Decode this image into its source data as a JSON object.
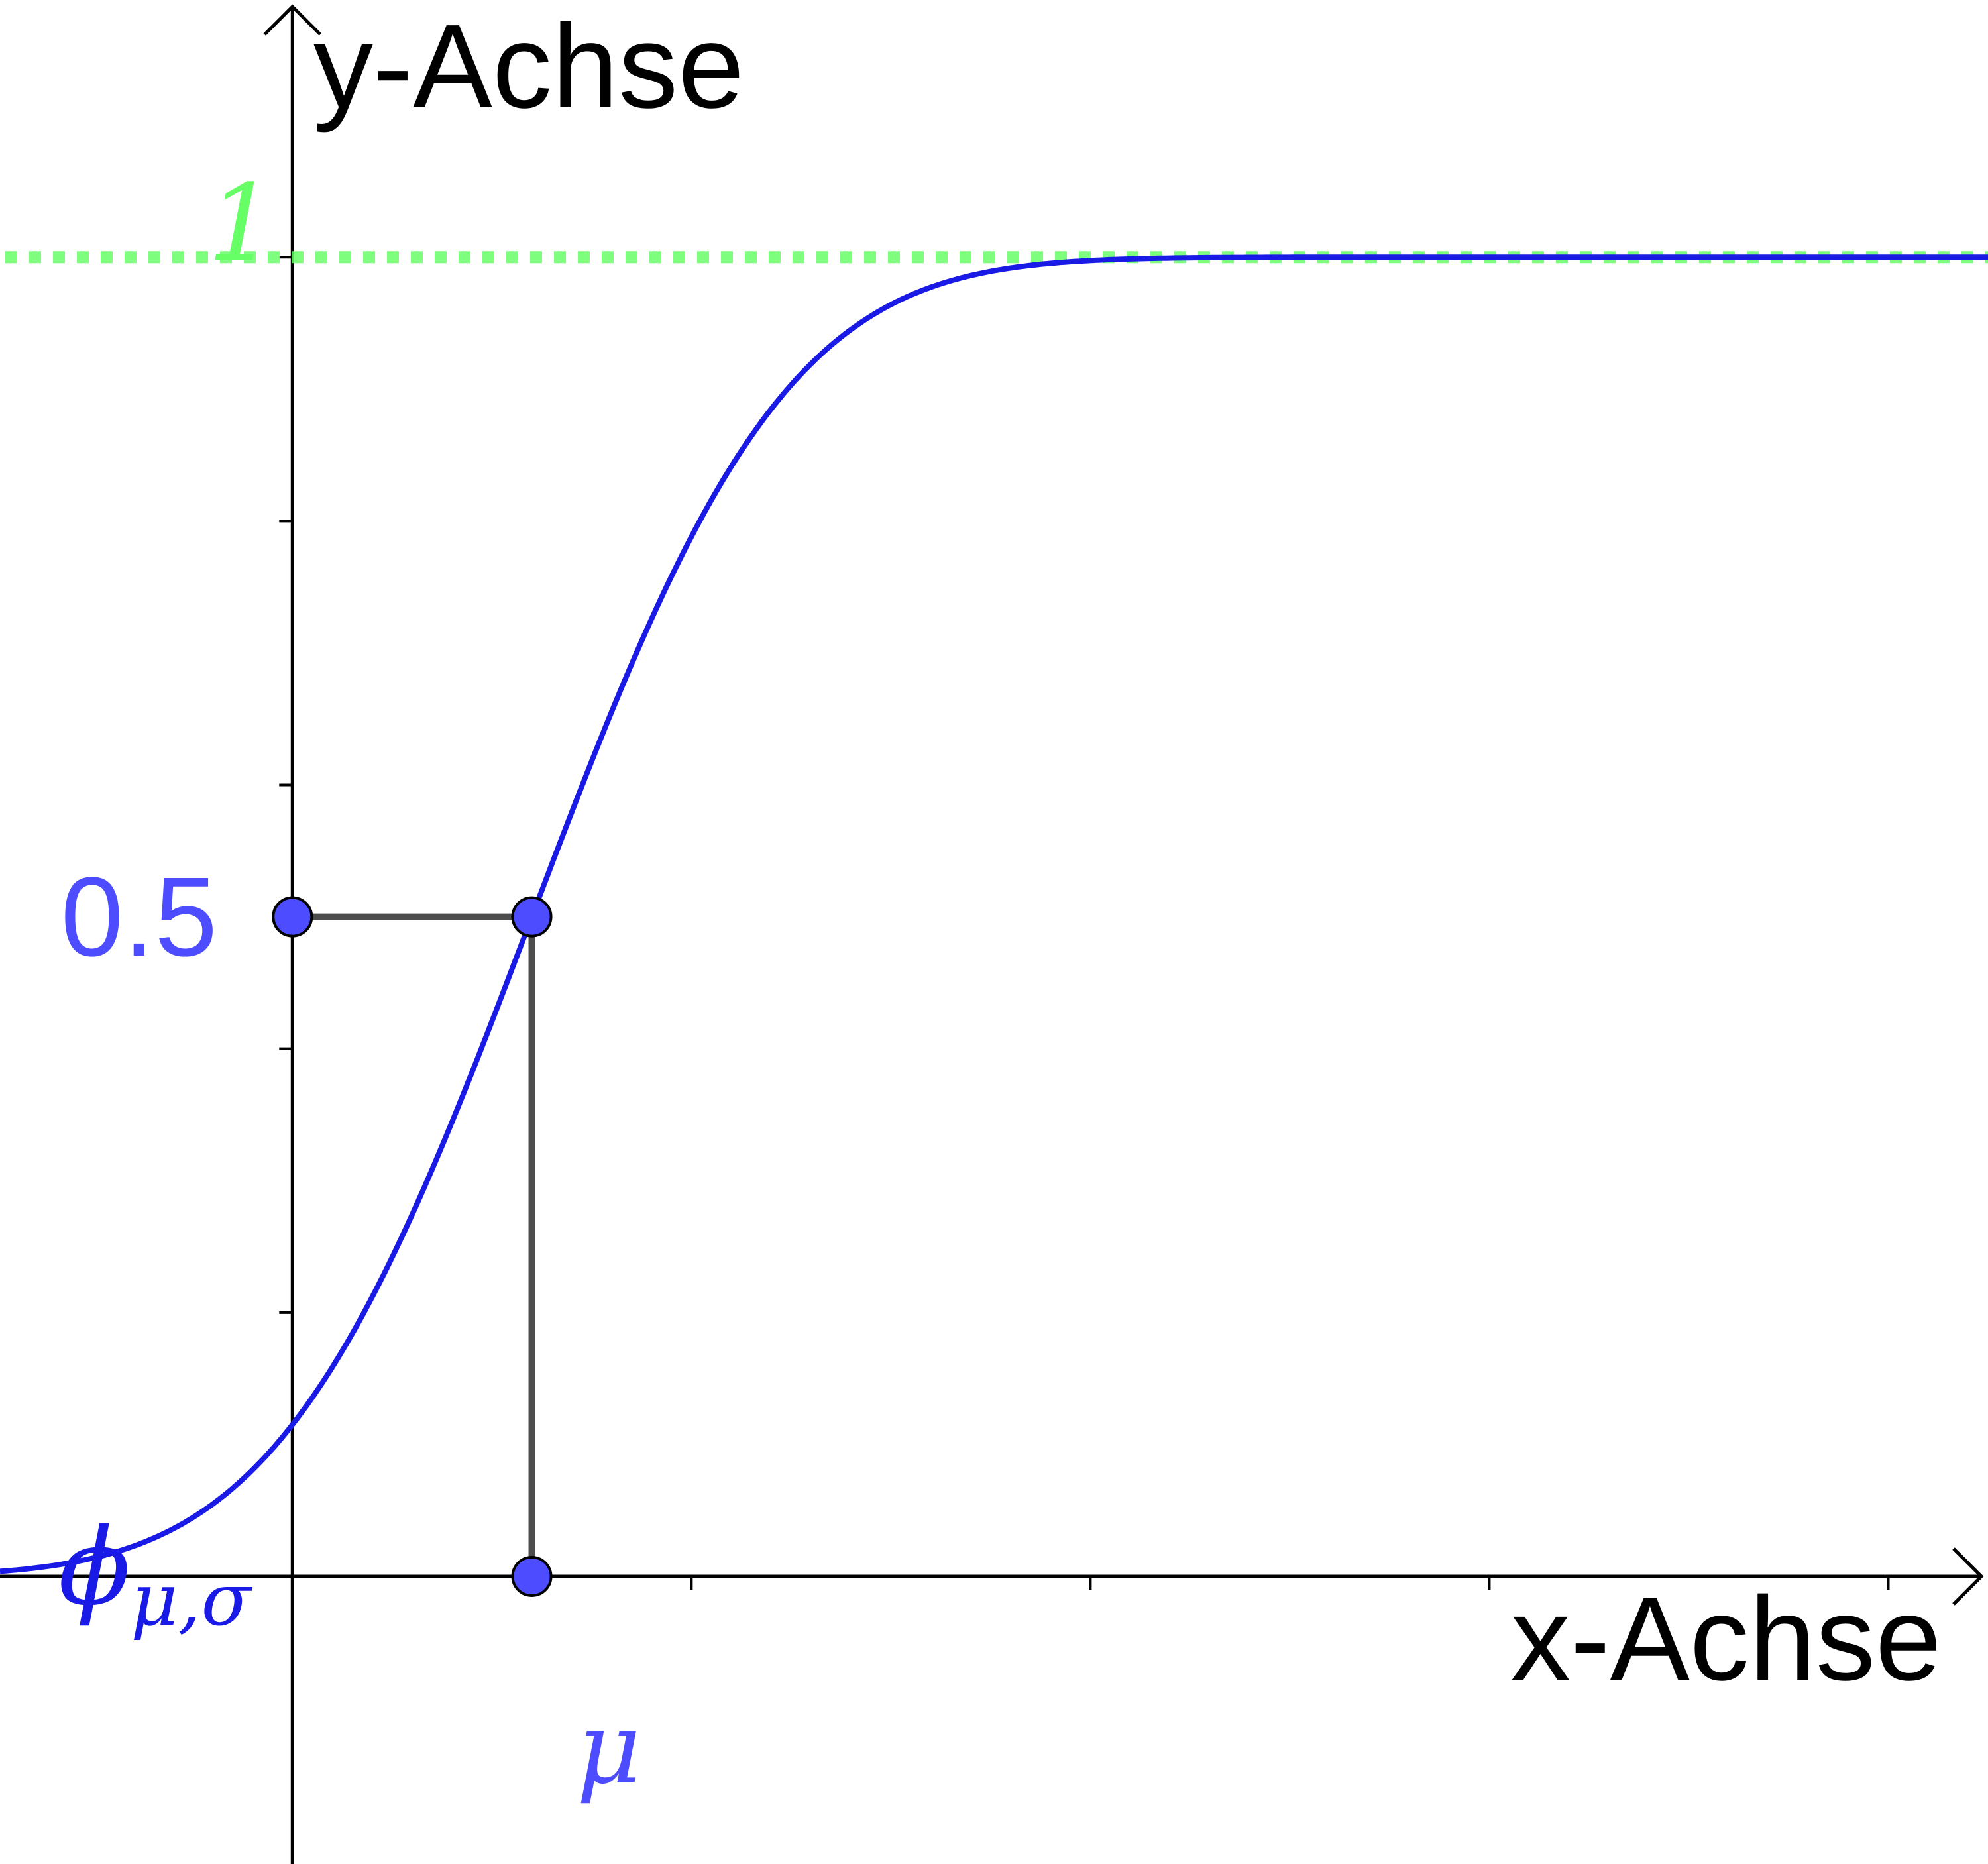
{
  "chart_data": {
    "type": "line",
    "title": "",
    "xlabel": "x-Achse",
    "ylabel": "y-Achse",
    "xlim": [
      -0.733,
      4.25
    ],
    "ylim": [
      -0.218,
      1.195
    ],
    "x_ticks": [
      1,
      2,
      3,
      4
    ],
    "y_ticks": [
      0.2,
      0.4,
      0.6,
      0.8,
      1.0
    ],
    "grid": false,
    "series": [
      {
        "name": "ϕμ,σ",
        "kind": "normal-cdf",
        "mu": 0.6,
        "sigma": 0.5,
        "color": "#1a1ae6"
      }
    ],
    "asymptote": {
      "y": 1,
      "label": "1",
      "color": "#66ff66",
      "style": "dotted"
    },
    "median_point": {
      "x": 0.6,
      "y": 0.5,
      "x_label": "μ",
      "y_label": "0.5",
      "color": "#4d4dff"
    },
    "function_label": {
      "base": "ϕ",
      "subscript": "μ,σ"
    },
    "guide_color": "#4d4d4d"
  }
}
